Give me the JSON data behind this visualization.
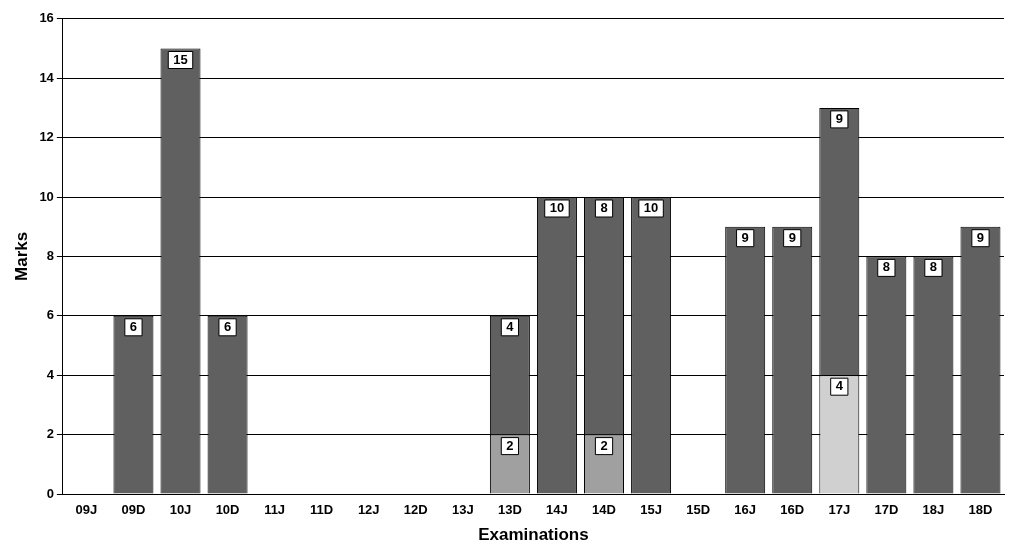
{
  "chart_data": {
    "type": "bar",
    "xlabel": "Examinations",
    "ylabel": "Marks",
    "stacked": true,
    "grid": "y",
    "legend": false,
    "data_labels": true,
    "categories": [
      "09J",
      "09D",
      "10J",
      "10D",
      "11J",
      "11D",
      "12J",
      "12D",
      "13J",
      "13D",
      "14J",
      "14D",
      "15J",
      "15D",
      "16J",
      "16D",
      "17J",
      "17D",
      "18J",
      "18D"
    ],
    "ylim": [
      0,
      16
    ],
    "yticks": [
      0,
      2,
      4,
      6,
      8,
      10,
      12,
      14,
      16
    ],
    "series": [
      {
        "color": "#a0a0a0",
        "values": [
          null,
          null,
          null,
          null,
          null,
          null,
          null,
          null,
          null,
          2,
          null,
          2,
          null,
          null,
          null,
          null,
          null,
          null,
          null,
          null
        ]
      },
      {
        "color": "#d0d0d0",
        "values": [
          null,
          null,
          null,
          null,
          null,
          null,
          null,
          null,
          null,
          null,
          null,
          null,
          null,
          null,
          null,
          null,
          4,
          null,
          null,
          null
        ]
      },
      {
        "color": "#606060",
        "values": [
          null,
          6,
          15,
          6,
          null,
          null,
          null,
          null,
          null,
          4,
          10,
          8,
          10,
          null,
          9,
          9,
          9,
          8,
          8,
          9
        ]
      }
    ]
  }
}
